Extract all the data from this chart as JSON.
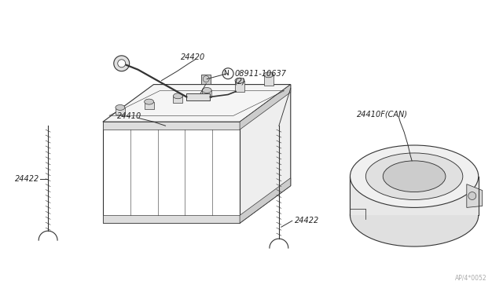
{
  "bg_color": "#ffffff",
  "line_color": "#333333",
  "text_color": "#222222",
  "fig_width": 6.4,
  "fig_height": 3.72,
  "dpi": 100,
  "watermark": "AP/4*0052"
}
